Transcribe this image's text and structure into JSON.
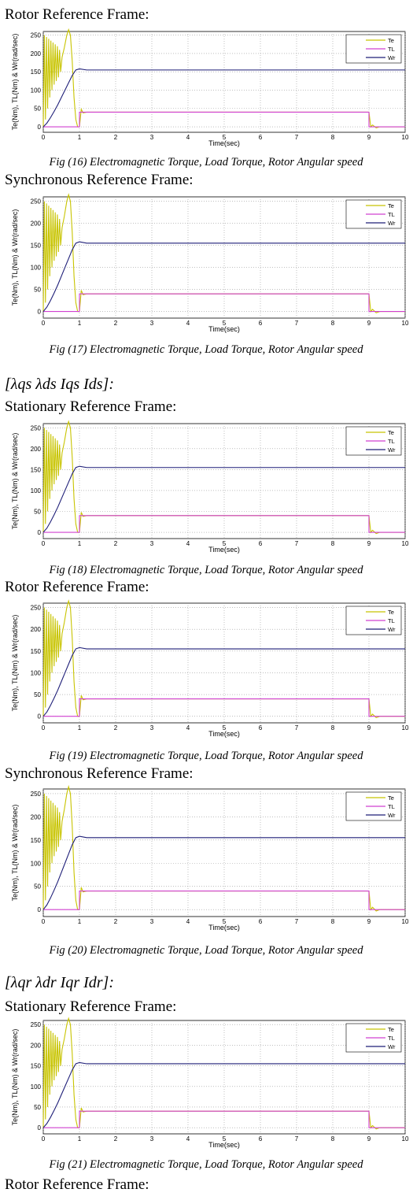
{
  "chart_data": [
    {
      "type": "line",
      "heading": "Rotor Reference Frame:",
      "caption": "Fig (16) Electromagnetic Torque, Load Torque, Rotor Angular speed",
      "xlabel": "Time(sec)",
      "ylabel": "Te(Nm), TL(Nm) & Wr(rad/sec)",
      "xlim": [
        0,
        10
      ],
      "xticks": [
        0,
        1,
        2,
        3,
        4,
        5,
        6,
        7,
        8,
        9,
        10
      ],
      "ylim": [
        -15,
        260
      ],
      "yticks": [
        0,
        50,
        100,
        150,
        200,
        250
      ],
      "grid": true,
      "legend": "upper right",
      "series": [
        {
          "name": "Te",
          "color": "#c8c400",
          "x": [
            0,
            0.03,
            0.06,
            0.09,
            0.12,
            0.15,
            0.18,
            0.21,
            0.24,
            0.27,
            0.3,
            0.33,
            0.36,
            0.39,
            0.42,
            0.45,
            0.48,
            0.52,
            0.58,
            0.65,
            0.7,
            0.75,
            0.8,
            0.85,
            0.9,
            0.95,
            1,
            1.05,
            1.1,
            1.2,
            1.4,
            9,
            9.05,
            9.1,
            9.2,
            9.3,
            10
          ],
          "values": [
            0,
            250,
            20,
            245,
            50,
            240,
            80,
            235,
            100,
            230,
            115,
            225,
            125,
            220,
            135,
            210,
            150,
            190,
            215,
            250,
            265,
            250,
            180,
            80,
            20,
            0,
            0,
            48,
            38,
            40,
            40,
            40,
            0,
            5,
            -3,
            0,
            0
          ]
        },
        {
          "name": "TL",
          "color": "#d040d0",
          "x": [
            0,
            1,
            1,
            9,
            9,
            10
          ],
          "values": [
            0,
            0,
            40,
            40,
            0,
            0
          ]
        },
        {
          "name": "Wr",
          "color": "#1f1f78",
          "x": [
            0,
            0.1,
            0.2,
            0.3,
            0.4,
            0.5,
            0.6,
            0.7,
            0.8,
            0.9,
            1,
            1.2,
            10
          ],
          "values": [
            0,
            10,
            25,
            42,
            60,
            80,
            100,
            120,
            140,
            155,
            158,
            155,
            155
          ]
        }
      ]
    },
    {
      "type": "line",
      "heading": "Synchronous Reference Frame:",
      "caption": "Fig (17) Electromagnetic Torque, Load Torque, Rotor Angular speed",
      "xlabel": "Time(sec)",
      "ylabel": "Te(Nm), TL(Nm) & Wr(rad/sec)",
      "xlim": [
        0,
        10
      ],
      "xticks": [
        0,
        1,
        2,
        3,
        4,
        5,
        6,
        7,
        8,
        9,
        10
      ],
      "ylim": [
        -15,
        260
      ],
      "yticks": [
        0,
        50,
        100,
        150,
        200,
        250
      ],
      "grid": true,
      "legend": "upper right",
      "series": [
        {
          "name": "Te",
          "color": "#c8c400",
          "x": [
            0,
            0.03,
            0.06,
            0.09,
            0.12,
            0.15,
            0.18,
            0.21,
            0.24,
            0.27,
            0.3,
            0.33,
            0.36,
            0.39,
            0.42,
            0.45,
            0.48,
            0.52,
            0.58,
            0.65,
            0.7,
            0.75,
            0.8,
            0.85,
            0.9,
            0.95,
            1,
            1.05,
            1.1,
            1.2,
            1.4,
            9,
            9.05,
            9.1,
            9.2,
            9.3,
            10
          ],
          "values": [
            0,
            250,
            20,
            245,
            50,
            240,
            80,
            235,
            100,
            230,
            115,
            225,
            125,
            220,
            135,
            210,
            150,
            190,
            215,
            250,
            265,
            250,
            180,
            80,
            20,
            0,
            0,
            48,
            38,
            40,
            40,
            40,
            0,
            5,
            -3,
            0,
            0
          ]
        },
        {
          "name": "TL",
          "color": "#d040d0",
          "x": [
            0,
            1,
            1,
            9,
            9,
            10
          ],
          "values": [
            0,
            0,
            40,
            40,
            0,
            0
          ]
        },
        {
          "name": "Wr",
          "color": "#1f1f78",
          "x": [
            0,
            0.1,
            0.2,
            0.3,
            0.4,
            0.5,
            0.6,
            0.7,
            0.8,
            0.9,
            1,
            1.2,
            10
          ],
          "values": [
            0,
            10,
            25,
            42,
            60,
            80,
            100,
            120,
            140,
            155,
            158,
            155,
            155
          ]
        }
      ]
    },
    {
      "type": "line",
      "section_label": "[λqs   λds   Iqs   Ids]:",
      "heading": "Stationary Reference Frame:",
      "caption": "Fig (18) Electromagnetic Torque, Load Torque, Rotor Angular speed",
      "xlabel": "Time(sec)",
      "ylabel": "Te(Nm), TL(Nm) & Wr(rad/sec)",
      "xlim": [
        0,
        10
      ],
      "xticks": [
        0,
        1,
        2,
        3,
        4,
        5,
        6,
        7,
        8,
        9,
        10
      ],
      "ylim": [
        -15,
        260
      ],
      "yticks": [
        0,
        50,
        100,
        150,
        200,
        250
      ],
      "grid": true,
      "legend": "upper right",
      "series": [
        {
          "name": "Te",
          "color": "#c8c400",
          "x": [
            0,
            0.03,
            0.06,
            0.09,
            0.12,
            0.15,
            0.18,
            0.21,
            0.24,
            0.27,
            0.3,
            0.33,
            0.36,
            0.39,
            0.42,
            0.45,
            0.48,
            0.52,
            0.58,
            0.65,
            0.7,
            0.75,
            0.8,
            0.85,
            0.9,
            0.95,
            1,
            1.05,
            1.1,
            1.2,
            1.4,
            9,
            9.05,
            9.1,
            9.2,
            9.3,
            10
          ],
          "values": [
            0,
            250,
            20,
            245,
            50,
            240,
            80,
            235,
            100,
            230,
            115,
            225,
            125,
            220,
            135,
            210,
            150,
            190,
            215,
            250,
            265,
            250,
            180,
            80,
            20,
            0,
            0,
            48,
            38,
            40,
            40,
            40,
            0,
            5,
            -3,
            0,
            0
          ]
        },
        {
          "name": "TL",
          "color": "#d040d0",
          "x": [
            0,
            1,
            1,
            9,
            9,
            10
          ],
          "values": [
            0,
            0,
            40,
            40,
            0,
            0
          ]
        },
        {
          "name": "Wr",
          "color": "#1f1f78",
          "x": [
            0,
            0.1,
            0.2,
            0.3,
            0.4,
            0.5,
            0.6,
            0.7,
            0.8,
            0.9,
            1,
            1.2,
            10
          ],
          "values": [
            0,
            10,
            25,
            42,
            60,
            80,
            100,
            120,
            140,
            155,
            158,
            155,
            155
          ]
        }
      ]
    },
    {
      "type": "line",
      "heading": "Rotor Reference Frame:",
      "caption": "Fig (19) Electromagnetic Torque, Load Torque, Rotor Angular speed",
      "xlabel": "Time(sec)",
      "ylabel": "Te(Nm), TL(Nm) & Wr(rad/sec)",
      "xlim": [
        0,
        10
      ],
      "xticks": [
        0,
        1,
        2,
        3,
        4,
        5,
        6,
        7,
        8,
        9,
        10
      ],
      "ylim": [
        -15,
        260
      ],
      "yticks": [
        0,
        50,
        100,
        150,
        200,
        250
      ],
      "grid": true,
      "legend": "upper right",
      "series": [
        {
          "name": "Te",
          "color": "#c8c400",
          "x": [
            0,
            0.03,
            0.06,
            0.09,
            0.12,
            0.15,
            0.18,
            0.21,
            0.24,
            0.27,
            0.3,
            0.33,
            0.36,
            0.39,
            0.42,
            0.45,
            0.48,
            0.52,
            0.58,
            0.65,
            0.7,
            0.75,
            0.8,
            0.85,
            0.9,
            0.95,
            1,
            1.05,
            1.1,
            1.2,
            1.4,
            9,
            9.05,
            9.1,
            9.2,
            9.3,
            10
          ],
          "values": [
            0,
            250,
            20,
            245,
            50,
            240,
            80,
            235,
            100,
            230,
            115,
            225,
            125,
            220,
            135,
            210,
            150,
            190,
            215,
            250,
            265,
            250,
            180,
            80,
            20,
            0,
            0,
            48,
            38,
            40,
            40,
            40,
            0,
            5,
            -3,
            0,
            0
          ]
        },
        {
          "name": "TL",
          "color": "#d040d0",
          "x": [
            0,
            1,
            1,
            9,
            9,
            10
          ],
          "values": [
            0,
            0,
            40,
            40,
            0,
            0
          ]
        },
        {
          "name": "Wr",
          "color": "#1f1f78",
          "x": [
            0,
            0.1,
            0.2,
            0.3,
            0.4,
            0.5,
            0.6,
            0.7,
            0.8,
            0.9,
            1,
            1.2,
            10
          ],
          "values": [
            0,
            10,
            25,
            42,
            60,
            80,
            100,
            120,
            140,
            155,
            158,
            155,
            155
          ]
        }
      ]
    },
    {
      "type": "line",
      "heading": "Synchronous Reference Frame:",
      "caption": "Fig (20) Electromagnetic Torque, Load Torque, Rotor Angular speed",
      "xlabel": "Time(sec)",
      "ylabel": "Te(Nm), TL(Nm) & Wr(rad/sec)",
      "xlim": [
        0,
        10
      ],
      "xticks": [
        0,
        1,
        2,
        3,
        4,
        5,
        6,
        7,
        8,
        9,
        10
      ],
      "ylim": [
        -15,
        260
      ],
      "yticks": [
        0,
        50,
        100,
        150,
        200,
        250
      ],
      "grid": true,
      "legend": "upper right",
      "series": [
        {
          "name": "Te",
          "color": "#c8c400",
          "x": [
            0,
            0.03,
            0.06,
            0.09,
            0.12,
            0.15,
            0.18,
            0.21,
            0.24,
            0.27,
            0.3,
            0.33,
            0.36,
            0.39,
            0.42,
            0.45,
            0.48,
            0.52,
            0.58,
            0.65,
            0.7,
            0.75,
            0.8,
            0.85,
            0.9,
            0.95,
            1,
            1.05,
            1.1,
            1.2,
            1.4,
            9,
            9.05,
            9.1,
            9.2,
            9.3,
            10
          ],
          "values": [
            0,
            250,
            20,
            245,
            50,
            240,
            80,
            235,
            100,
            230,
            115,
            225,
            125,
            220,
            135,
            210,
            150,
            190,
            215,
            250,
            265,
            250,
            180,
            80,
            20,
            0,
            0,
            48,
            38,
            40,
            40,
            40,
            0,
            5,
            -3,
            0,
            0
          ]
        },
        {
          "name": "TL",
          "color": "#d040d0",
          "x": [
            0,
            1,
            1,
            9,
            9,
            10
          ],
          "values": [
            0,
            0,
            40,
            40,
            0,
            0
          ]
        },
        {
          "name": "Wr",
          "color": "#1f1f78",
          "x": [
            0,
            0.1,
            0.2,
            0.3,
            0.4,
            0.5,
            0.6,
            0.7,
            0.8,
            0.9,
            1,
            1.2,
            10
          ],
          "values": [
            0,
            10,
            25,
            42,
            60,
            80,
            100,
            120,
            140,
            155,
            158,
            155,
            155
          ]
        }
      ]
    },
    {
      "type": "line",
      "section_label": "[λqr   λdr   Iqr   Idr]:",
      "heading": "Stationary Reference Frame:",
      "caption": "Fig (21) Electromagnetic Torque, Load Torque, Rotor Angular speed",
      "xlabel": "Time(sec)",
      "ylabel": "Te(Nm), TL(Nm) & Wr(rad/sec)",
      "xlim": [
        0,
        10
      ],
      "xticks": [
        0,
        1,
        2,
        3,
        4,
        5,
        6,
        7,
        8,
        9,
        10
      ],
      "ylim": [
        -15,
        260
      ],
      "yticks": [
        0,
        50,
        100,
        150,
        200,
        250
      ],
      "grid": true,
      "legend": "upper right",
      "series": [
        {
          "name": "Te",
          "color": "#c8c400",
          "x": [
            0,
            0.03,
            0.06,
            0.09,
            0.12,
            0.15,
            0.18,
            0.21,
            0.24,
            0.27,
            0.3,
            0.33,
            0.36,
            0.39,
            0.42,
            0.45,
            0.48,
            0.52,
            0.58,
            0.65,
            0.7,
            0.75,
            0.8,
            0.85,
            0.9,
            0.95,
            1,
            1.05,
            1.1,
            1.2,
            1.4,
            9,
            9.05,
            9.1,
            9.2,
            9.3,
            10
          ],
          "values": [
            0,
            250,
            20,
            245,
            50,
            240,
            80,
            235,
            100,
            230,
            115,
            225,
            125,
            220,
            135,
            210,
            150,
            190,
            215,
            250,
            265,
            250,
            180,
            80,
            20,
            0,
            0,
            48,
            38,
            40,
            40,
            40,
            0,
            5,
            -3,
            0,
            0
          ]
        },
        {
          "name": "TL",
          "color": "#d040d0",
          "x": [
            0,
            1,
            1,
            9,
            9,
            10
          ],
          "values": [
            0,
            0,
            40,
            40,
            0,
            0
          ]
        },
        {
          "name": "Wr",
          "color": "#1f1f78",
          "x": [
            0,
            0.1,
            0.2,
            0.3,
            0.4,
            0.5,
            0.6,
            0.7,
            0.8,
            0.9,
            1,
            1.2,
            10
          ],
          "values": [
            0,
            10,
            25,
            42,
            60,
            80,
            100,
            120,
            140,
            155,
            158,
            155,
            155
          ]
        }
      ]
    }
  ],
  "trailing_heading": "Rotor Reference Frame:"
}
